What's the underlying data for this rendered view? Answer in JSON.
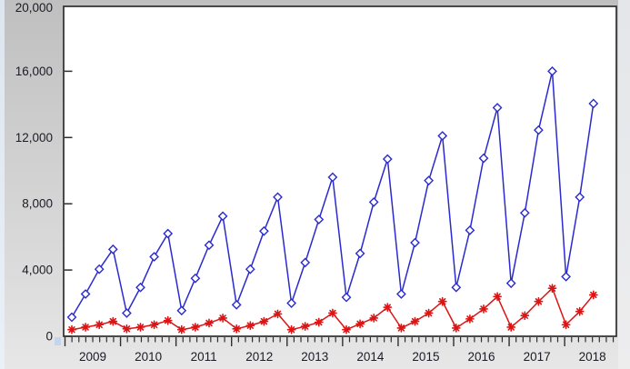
{
  "window": {
    "bg_top": "#bfbfbf",
    "bg_bottom": "#e7e7e7",
    "left_edge_highlight": "#dde5ee",
    "plot_background": "#ffffff",
    "frame_color": "#2e2e2e",
    "label_color": "#1b1b26"
  },
  "chart_data": {
    "type": "line",
    "title": "",
    "legend": "none",
    "grid": "off",
    "frequency": "quarterly",
    "x": [
      "2009Q1",
      "2009Q2",
      "2009Q3",
      "2009Q4",
      "2010Q1",
      "2010Q2",
      "2010Q3",
      "2010Q4",
      "2011Q1",
      "2011Q2",
      "2011Q3",
      "2011Q4",
      "2012Q1",
      "2012Q2",
      "2012Q3",
      "2012Q4",
      "2013Q1",
      "2013Q2",
      "2013Q3",
      "2013Q4",
      "2014Q1",
      "2014Q2",
      "2014Q3",
      "2014Q4",
      "2015Q1",
      "2015Q2",
      "2015Q3",
      "2015Q4",
      "2016Q1",
      "2016Q2",
      "2016Q3",
      "2016Q4",
      "2017Q1",
      "2017Q2",
      "2017Q3",
      "2017Q4",
      "2018Q1",
      "2018Q2",
      "2018Q3"
    ],
    "series": [
      {
        "name": "series-1-blue-diamond",
        "color": "#2a2ad0",
        "marker": "open-diamond",
        "values": [
          1150,
          2550,
          4050,
          5250,
          1400,
          2950,
          4800,
          6200,
          1550,
          3500,
          5500,
          7250,
          1900,
          4050,
          6350,
          8400,
          2000,
          4450,
          7050,
          9600,
          2350,
          5000,
          8100,
          10700,
          2550,
          5650,
          9400,
          12100,
          2950,
          6400,
          10750,
          13800,
          3200,
          7450,
          12450,
          16000,
          3600,
          8400,
          14050
        ]
      },
      {
        "name": "series-2-red-asterisk",
        "color": "#dc1414",
        "marker": "asterisk",
        "values": [
          400,
          550,
          700,
          900,
          450,
          550,
          700,
          950,
          400,
          550,
          800,
          1100,
          450,
          650,
          900,
          1350,
          400,
          600,
          850,
          1400,
          400,
          750,
          1100,
          1750,
          500,
          900,
          1400,
          2100,
          500,
          1050,
          1650,
          2400,
          550,
          1250,
          2100,
          2900,
          700,
          1500,
          2500
        ]
      }
    ],
    "y_axis": {
      "min": 0,
      "max": 20000,
      "ticks": [
        0,
        4000,
        8000,
        12000,
        16000,
        20000
      ],
      "tick_labels": [
        "0",
        "4,000",
        "8,000",
        "12,000",
        "16,000",
        "20,000"
      ],
      "tick_style": "inward"
    },
    "x_axis": {
      "year_labels": [
        "2009",
        "2010",
        "2011",
        "2012",
        "2013",
        "2014",
        "2015",
        "2016",
        "2017",
        "2018"
      ],
      "minor_ticks_per_year": 8,
      "tick_style": "outward"
    }
  }
}
